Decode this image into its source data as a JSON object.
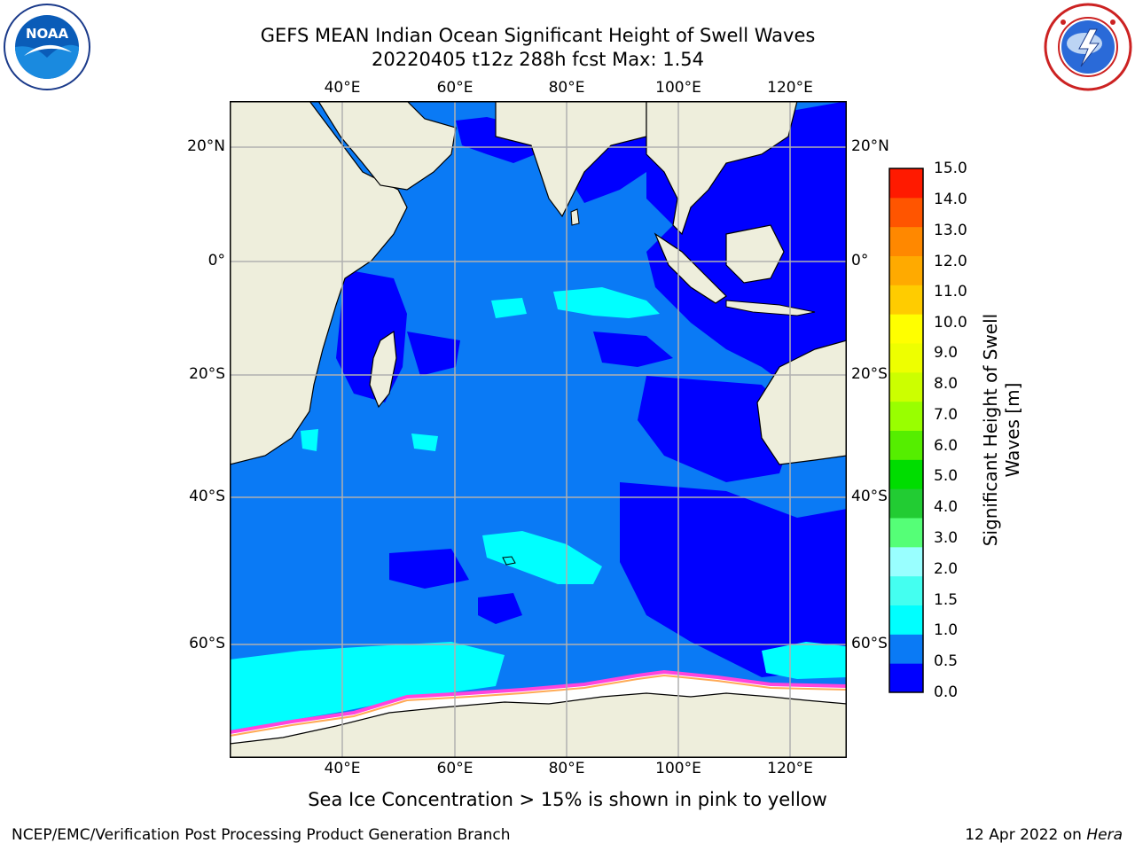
{
  "header": {
    "title_line1": "GEFS MEAN Indian Ocean Significant Height of Swell Waves",
    "title_line2": "20220405 t12z 288h fcst   Max: 1.54"
  },
  "map": {
    "region": "Indian Ocean",
    "lon_ticks": [
      "40°E",
      "60°E",
      "80°E",
      "100°E",
      "120°E"
    ],
    "lat_ticks": [
      "20°N",
      "0°",
      "20°S",
      "40°S",
      "60°S"
    ],
    "lon_range": [
      20,
      130
    ],
    "lat_range": [
      -72,
      28
    ],
    "field": "Significant Height of Swell Waves",
    "max_value": 1.54,
    "colors": {
      "land": "#eeeedc",
      "sea_ice": "#ffffff",
      "ocean_0_0.5": "#0000ff",
      "ocean_0.5_1.0": "#0a7af5",
      "ocean_1.0_1.5": "#00ffff",
      "ice_edge": "#ff44dd",
      "grid": "#b0b0b0"
    }
  },
  "colorbar": {
    "title_line1": "Significant Height of Swell",
    "title_line2": "Waves [m]",
    "labels": [
      "15.0",
      "14.0",
      "13.0",
      "12.0",
      "11.0",
      "10.0",
      "9.0",
      "8.0",
      "7.0",
      "6.0",
      "5.0",
      "4.0",
      "3.0",
      "2.0",
      "1.5",
      "1.0",
      "0.5",
      "0.0"
    ],
    "colors_bottom_to_top": [
      "#0000ff",
      "#0a7af5",
      "#00ffff",
      "#44fff0",
      "#99ffff",
      "#55ff77",
      "#22cc33",
      "#00dd00",
      "#55ee00",
      "#99ff00",
      "#ccff00",
      "#eeff00",
      "#ffff00",
      "#ffcc00",
      "#ffaa00",
      "#ff8800",
      "#ff5500",
      "#ff1a00"
    ]
  },
  "footer": {
    "note": "Sea Ice Concentration > 15% is shown in pink to yellow",
    "left": "NCEP/EMC/Verification Post Processing Product Generation Branch",
    "right_date": "12 Apr 2022 on ",
    "right_machine": "Hera"
  },
  "logos": {
    "left": "noaa-logo",
    "right": "nws-logo"
  }
}
